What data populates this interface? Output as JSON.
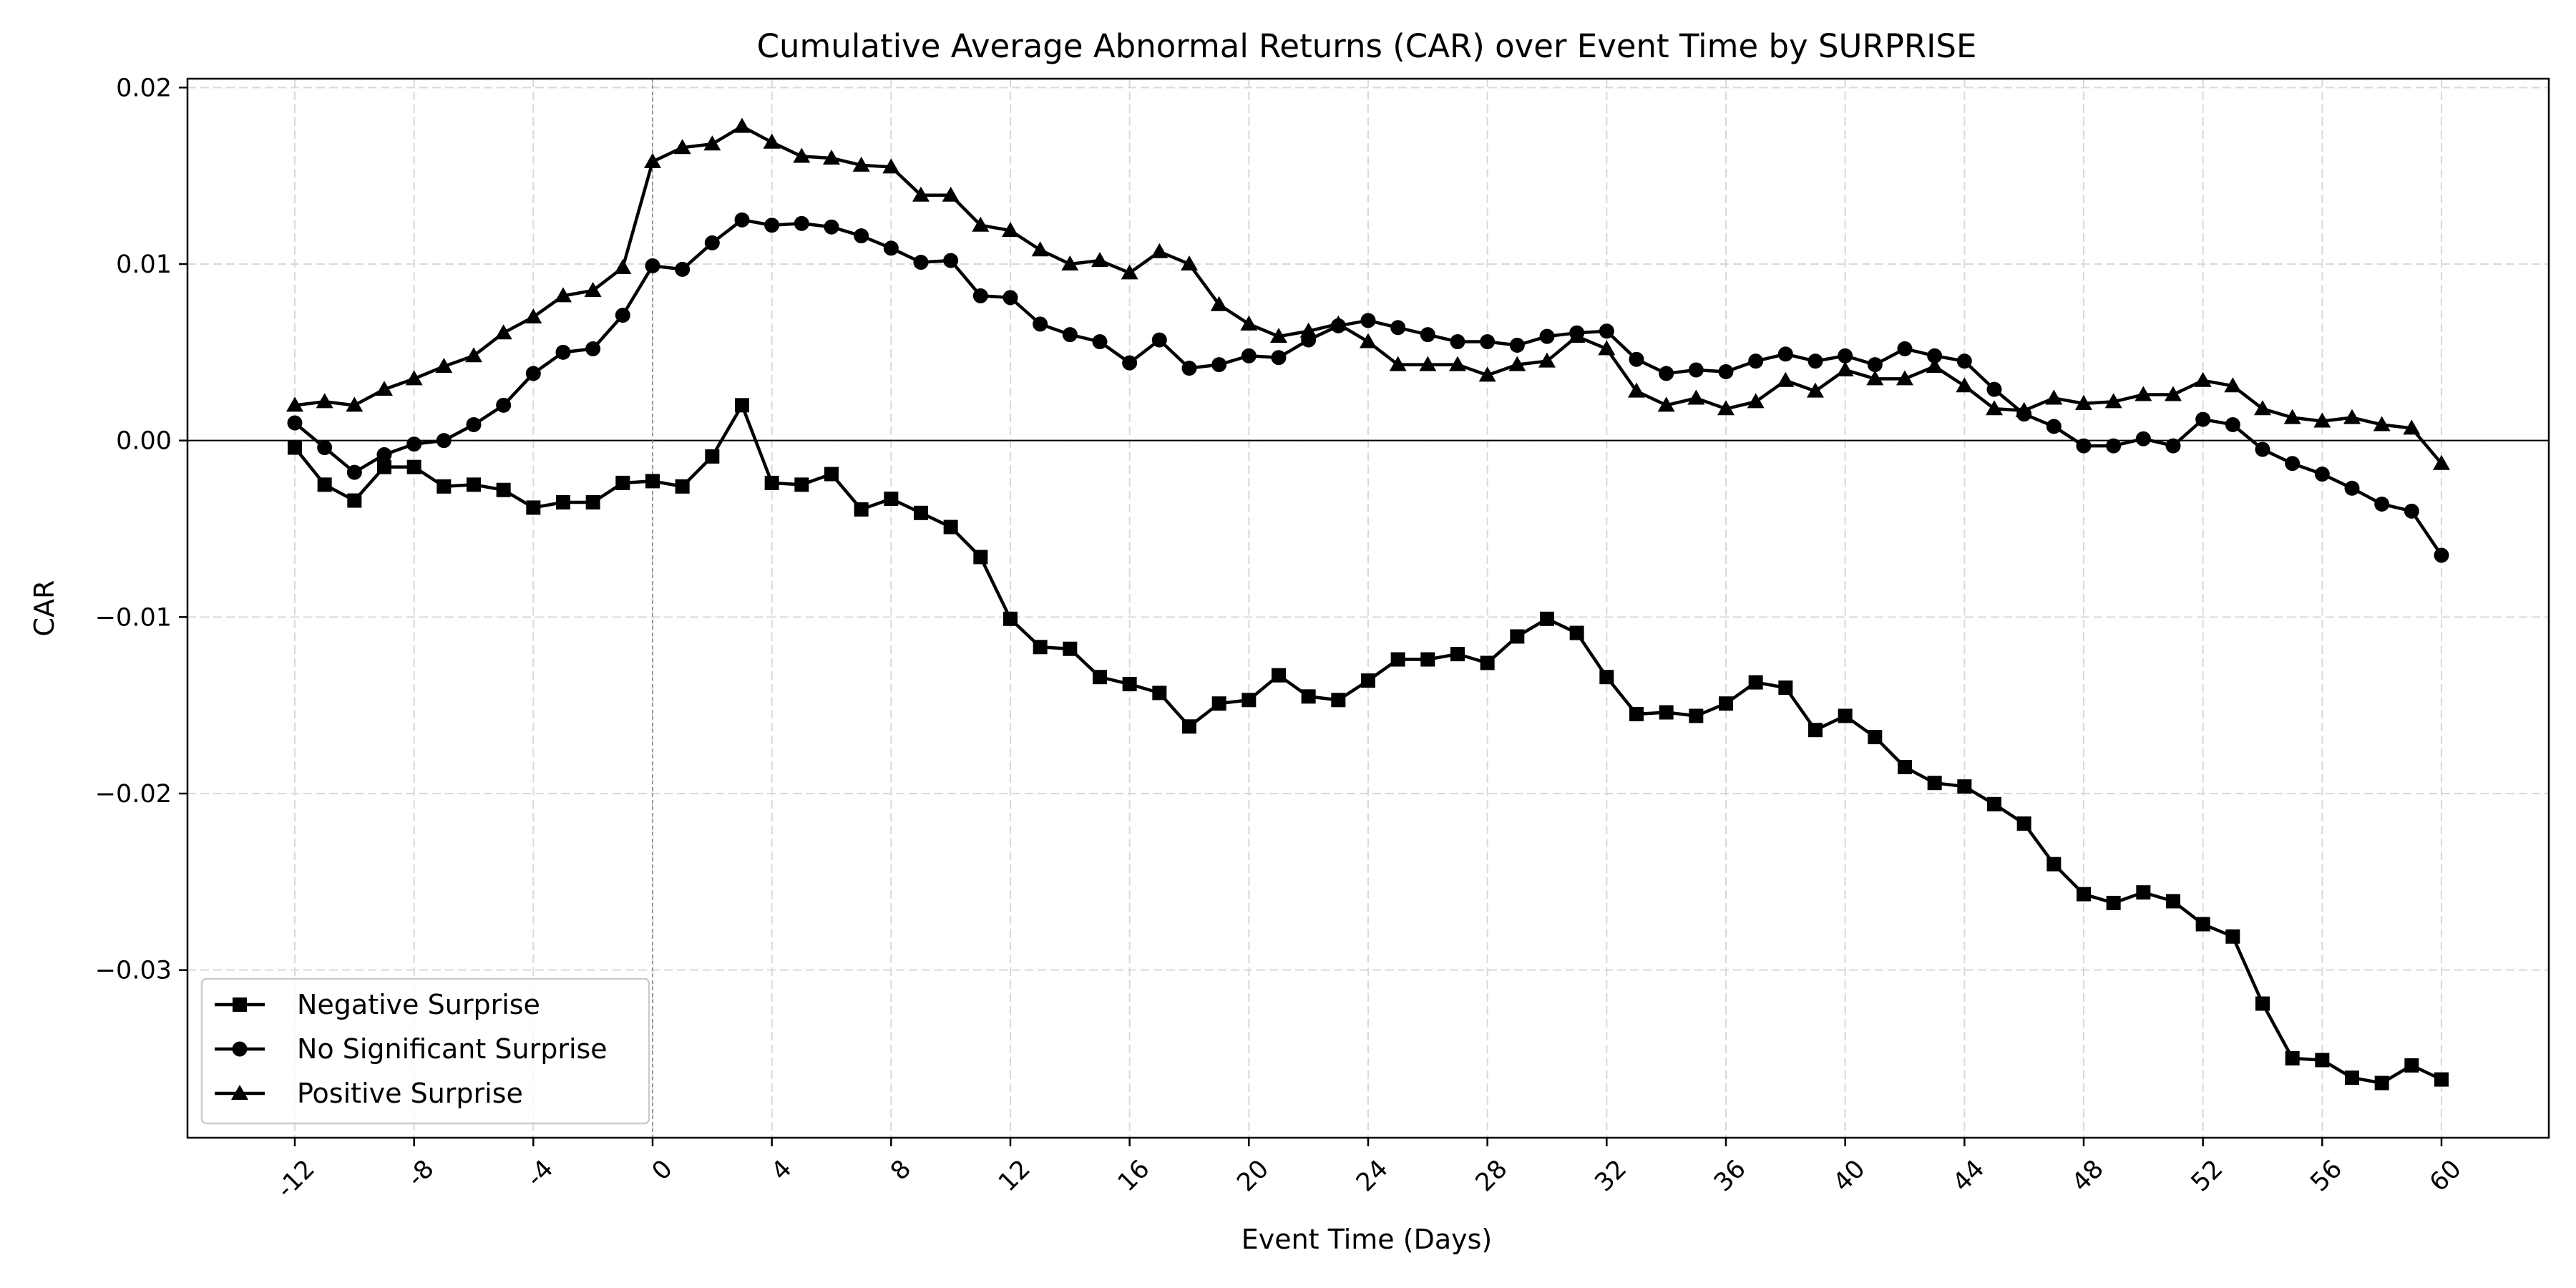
{
  "chart_data": {
    "type": "line",
    "title": "Cumulative Average Abnormal Returns (CAR) over Event Time by SURPRISE",
    "xlabel": "Event Time (Days)",
    "ylabel": "CAR",
    "xlim": [
      -15.6,
      63.6
    ],
    "ylim": [
      -0.0395,
      0.0205
    ],
    "xticks": [
      -12,
      -8,
      -4,
      0,
      4,
      8,
      12,
      16,
      20,
      24,
      28,
      32,
      36,
      40,
      44,
      48,
      52,
      56,
      60
    ],
    "xtick_labels": [
      "-12",
      "-8",
      "-4",
      "0",
      "4",
      "8",
      "12",
      "16",
      "20",
      "24",
      "28",
      "32",
      "36",
      "40",
      "44",
      "48",
      "52",
      "56",
      "60"
    ],
    "yticks": [
      -0.03,
      -0.02,
      -0.01,
      0.0,
      0.01,
      0.02
    ],
    "ytick_labels": [
      "−0.03",
      "−0.02",
      "−0.01",
      "0.00",
      "0.01",
      "0.02"
    ],
    "grid": true,
    "legend_position": "bottom-left",
    "x_start": -12,
    "reference_lines": {
      "horizontal": 0,
      "vertical": 0
    },
    "series": [
      {
        "name": "Negative Surprise",
        "marker": "square",
        "color": "#000000",
        "values": [
          -0.0004,
          -0.0025,
          -0.0034,
          -0.0015,
          -0.0015,
          -0.0026,
          -0.0025,
          -0.0028,
          -0.0038,
          -0.0035,
          -0.0035,
          -0.0024,
          -0.0023,
          -0.0026,
          -0.0009,
          0.002,
          -0.0024,
          -0.0025,
          -0.0019,
          -0.0039,
          -0.0033,
          -0.0041,
          -0.0049,
          -0.0066,
          -0.0101,
          -0.0117,
          -0.0118,
          -0.0134,
          -0.0138,
          -0.0143,
          -0.0162,
          -0.0149,
          -0.0147,
          -0.0133,
          -0.0145,
          -0.0147,
          -0.0136,
          -0.0124,
          -0.0124,
          -0.0121,
          -0.0126,
          -0.0111,
          -0.0101,
          -0.0109,
          -0.0134,
          -0.0155,
          -0.0154,
          -0.0156,
          -0.0149,
          -0.0137,
          -0.014,
          -0.0164,
          -0.0156,
          -0.0168,
          -0.0185,
          -0.0194,
          -0.0196,
          -0.0206,
          -0.0217,
          -0.024,
          -0.0257,
          -0.0262,
          -0.0256,
          -0.0261,
          -0.0274,
          -0.0281,
          -0.0319,
          -0.035,
          -0.0351,
          -0.0361,
          -0.0364,
          -0.0354,
          -0.0362
        ]
      },
      {
        "name": "No Significant Surprise",
        "marker": "circle",
        "color": "#000000",
        "values": [
          0.001,
          -0.0004,
          -0.0018,
          -0.0008,
          -0.0002,
          0.0,
          0.0009,
          0.002,
          0.0038,
          0.005,
          0.0052,
          0.0071,
          0.0099,
          0.0097,
          0.0112,
          0.0125,
          0.0122,
          0.0123,
          0.0121,
          0.0116,
          0.0109,
          0.0101,
          0.0102,
          0.0082,
          0.0081,
          0.0066,
          0.006,
          0.0056,
          0.0044,
          0.0057,
          0.0041,
          0.0043,
          0.0048,
          0.0047,
          0.0057,
          0.0065,
          0.0068,
          0.0064,
          0.006,
          0.0056,
          0.0056,
          0.0054,
          0.0059,
          0.0061,
          0.0062,
          0.0046,
          0.0038,
          0.004,
          0.0039,
          0.0045,
          0.0049,
          0.0045,
          0.0048,
          0.0043,
          0.0052,
          0.0048,
          0.0045,
          0.0029,
          0.0015,
          0.0008,
          -0.0003,
          -0.0003,
          0.0001,
          -0.0003,
          0.0012,
          0.0009,
          -0.0005,
          -0.0013,
          -0.0019,
          -0.0027,
          -0.0036,
          -0.004,
          -0.0065
        ]
      },
      {
        "name": "Positive Surprise",
        "marker": "triangle",
        "color": "#000000",
        "values": [
          0.002,
          0.0022,
          0.002,
          0.0029,
          0.0035,
          0.0042,
          0.0048,
          0.0061,
          0.007,
          0.0082,
          0.0085,
          0.0098,
          0.0158,
          0.0166,
          0.0168,
          0.0178,
          0.0169,
          0.0161,
          0.016,
          0.0156,
          0.0155,
          0.0139,
          0.0139,
          0.0122,
          0.0119,
          0.0108,
          0.01,
          0.0102,
          0.0095,
          0.0107,
          0.01,
          0.0077,
          0.0066,
          0.0059,
          0.0062,
          0.0066,
          0.0056,
          0.0043,
          0.0043,
          0.0043,
          0.0037,
          0.0043,
          0.0045,
          0.0059,
          0.0052,
          0.0028,
          0.002,
          0.0024,
          0.0018,
          0.0022,
          0.0034,
          0.0028,
          0.004,
          0.0035,
          0.0035,
          0.0042,
          0.0031,
          0.0018,
          0.0017,
          0.0024,
          0.0021,
          0.0022,
          0.0026,
          0.0026,
          0.0034,
          0.0031,
          0.0018,
          0.0013,
          0.0011,
          0.0013,
          0.0009,
          0.0007,
          -0.0013
        ]
      }
    ]
  }
}
